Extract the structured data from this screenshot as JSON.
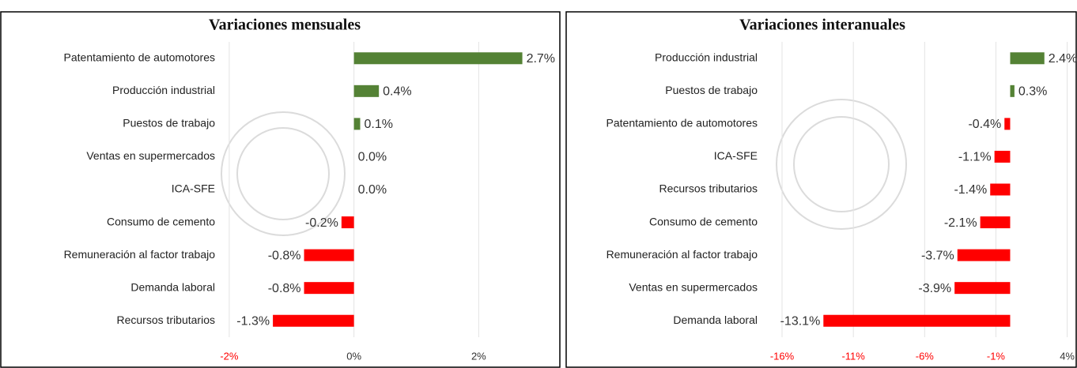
{
  "chart_data": [
    {
      "type": "bar",
      "orientation": "horizontal",
      "title": "Variaciones mensuales",
      "categories": [
        "Patentamiento de automotores",
        "Producción industrial",
        "Puestos de trabajo",
        "Ventas en supermercados",
        "ICA-SFE",
        "Consumo de cemento",
        "Remuneración al factor trabajo",
        "Demanda laboral",
        "Recursos tributarios"
      ],
      "values": [
        2.7,
        0.4,
        0.1,
        0.0,
        0.0,
        -0.2,
        -0.8,
        -0.8,
        -1.3
      ],
      "value_labels": [
        "2.7%",
        "0.4%",
        "0.1%",
        "0.0%",
        "0.0%",
        "-0.2%",
        "-0.8%",
        "-0.8%",
        "-1.3%"
      ],
      "positive_color": "#548235",
      "negative_color": "#ff0000",
      "xlim": [
        -2.1,
        3.2
      ],
      "xticks": [
        {
          "value": -2,
          "label": "-2%"
        },
        {
          "value": 0,
          "label": "0%"
        },
        {
          "value": 2,
          "label": "2%"
        }
      ],
      "grid": true
    },
    {
      "type": "bar",
      "orientation": "horizontal",
      "title": "Variaciones interanuales",
      "categories": [
        "Producción industrial",
        "Puestos de trabajo",
        "Patentamiento de automotores",
        "ICA-SFE",
        "Recursos tributarios",
        "Consumo de cemento",
        "Remuneración al factor trabajo",
        "Ventas en supermercados",
        "Demanda laboral"
      ],
      "values": [
        2.4,
        0.3,
        -0.4,
        -1.1,
        -1.4,
        -2.1,
        -3.7,
        -3.9,
        -13.1
      ],
      "value_labels": [
        "2.4%",
        "0.3%",
        "-0.4%",
        "-1.1%",
        "-1.4%",
        "-2.1%",
        "-3.7%",
        "-3.9%",
        "-13.1%"
      ],
      "positive_color": "#548235",
      "negative_color": "#ff0000",
      "xlim": [
        -16.5,
        4.3
      ],
      "xticks": [
        {
          "value": -16,
          "label": "-16%"
        },
        {
          "value": -11,
          "label": "-11%"
        },
        {
          "value": -6,
          "label": "-6%"
        },
        {
          "value": -1,
          "label": "-1%"
        },
        {
          "value": 4,
          "label": "4%"
        }
      ],
      "grid": true
    }
  ]
}
